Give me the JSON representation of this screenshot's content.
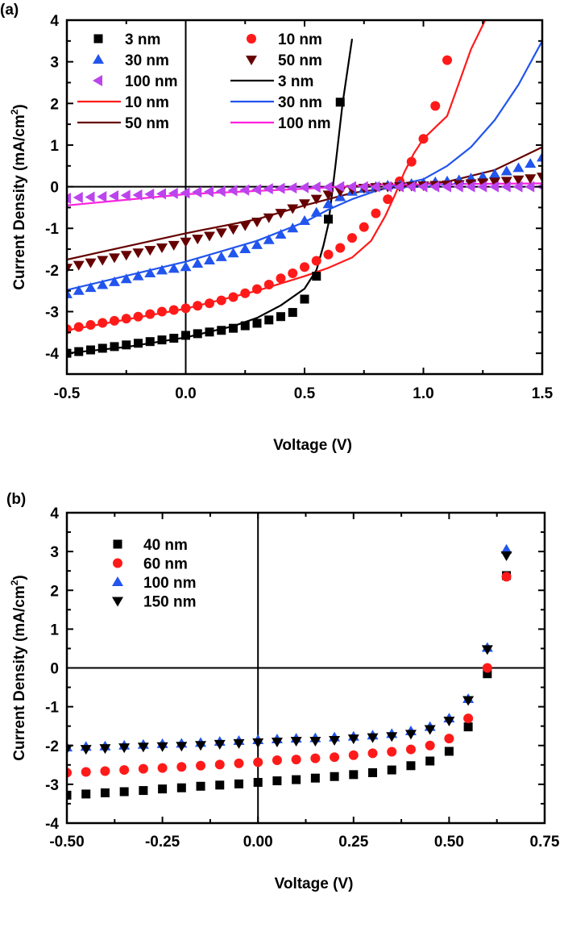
{
  "chart_data": [
    {
      "type": "scatter",
      "panel_label": "(a)",
      "xlabel": "Voltage (V)",
      "ylabel": "Current Density (mA/cm",
      "ylabel_sup": "2",
      "ylabel_close": ")",
      "xlim": [
        -0.5,
        1.5
      ],
      "ylim": [
        -4.5,
        4
      ],
      "xticks": [
        -0.5,
        0.0,
        0.5,
        1.0,
        1.5
      ],
      "xtick_labels": [
        "-0.5",
        "0.0",
        "0.5",
        "1.0",
        "1.5"
      ],
      "yticks": [
        -4,
        -3,
        -2,
        -1,
        0,
        1,
        2,
        3,
        4
      ],
      "ytick_labels": [
        "-4",
        "-3",
        "-2",
        "-1",
        "0",
        "1",
        "2",
        "3",
        "4"
      ],
      "grid": false,
      "reference_lines": {
        "x": 0,
        "y": 0
      },
      "legend_placement": "top-left",
      "x_markers": {
        "start": -0.5,
        "step": 0.05
      },
      "series": [
        {
          "name": "3 nm",
          "kind": "marker",
          "marker": "square",
          "color": "#000000",
          "values": [
            -4.0,
            -3.96,
            -3.92,
            -3.88,
            -3.84,
            -3.8,
            -3.76,
            -3.72,
            -3.68,
            -3.64,
            -3.57,
            -3.53,
            -3.49,
            -3.45,
            -3.4,
            -3.34,
            -3.28,
            -3.2,
            -3.12,
            -3.02,
            -2.7,
            -2.15,
            -0.78,
            2.03
          ]
        },
        {
          "name": "10 nm",
          "kind": "marker",
          "marker": "circle",
          "color": "#ff1a1a",
          "values": [
            -3.42,
            -3.37,
            -3.32,
            -3.27,
            -3.22,
            -3.17,
            -3.12,
            -3.06,
            -3.0,
            -2.96,
            -2.92,
            -2.86,
            -2.8,
            -2.73,
            -2.65,
            -2.56,
            -2.46,
            -2.35,
            -2.2,
            -2.08,
            -1.93,
            -1.78,
            -1.63,
            -1.47,
            -1.23,
            -0.97,
            -0.64,
            -0.3,
            0.13,
            0.6,
            1.15,
            1.94,
            3.04
          ]
        },
        {
          "name": "30 nm",
          "kind": "marker",
          "marker": "triangle-up",
          "color": "#2255ee",
          "values": [
            -2.58,
            -2.5,
            -2.43,
            -2.36,
            -2.29,
            -2.22,
            -2.15,
            -2.08,
            -2.01,
            -1.97,
            -1.93,
            -1.85,
            -1.77,
            -1.69,
            -1.6,
            -1.5,
            -1.4,
            -1.28,
            -1.15,
            -1.0,
            -0.82,
            -0.62,
            -0.42,
            -0.25,
            -0.12,
            -0.05,
            0.0,
            0.03,
            0.05,
            0.07,
            0.09,
            0.11,
            0.13,
            0.16,
            0.2,
            0.24,
            0.3,
            0.37,
            0.45,
            0.55,
            0.7
          ]
        },
        {
          "name": "50 nm",
          "kind": "marker",
          "marker": "triangle-down",
          "color": "#660000",
          "values": [
            -1.95,
            -1.88,
            -1.82,
            -1.76,
            -1.7,
            -1.64,
            -1.58,
            -1.52,
            -1.46,
            -1.4,
            -1.32,
            -1.25,
            -1.18,
            -1.1,
            -1.02,
            -0.93,
            -0.84,
            -0.74,
            -0.63,
            -0.52,
            -0.4,
            -0.29,
            -0.19,
            -0.11,
            -0.06,
            -0.03,
            -0.01,
            0.0,
            0.01,
            0.02,
            0.03,
            0.04,
            0.05,
            0.06,
            0.08,
            0.1,
            0.12,
            0.14,
            0.17,
            0.2,
            0.24
          ]
        },
        {
          "name": "100 nm",
          "kind": "marker",
          "marker": "triangle-left",
          "color": "#bb44ee",
          "values": [
            -0.28,
            -0.26,
            -0.25,
            -0.24,
            -0.22,
            -0.21,
            -0.2,
            -0.18,
            -0.17,
            -0.16,
            -0.15,
            -0.13,
            -0.12,
            -0.11,
            -0.09,
            -0.08,
            -0.07,
            -0.05,
            -0.04,
            -0.03,
            -0.02,
            -0.01,
            -0.01,
            0,
            0,
            0,
            0,
            0,
            0,
            0,
            0,
            0,
            0,
            0,
            0,
            0,
            0,
            0,
            0,
            0,
            0
          ]
        },
        {
          "name": "3 nm",
          "kind": "line",
          "color": "#000000",
          "points": [
            [
              -0.5,
              -4.0
            ],
            [
              -0.25,
              -3.85
            ],
            [
              0,
              -3.62
            ],
            [
              0.2,
              -3.35
            ],
            [
              0.3,
              -3.15
            ],
            [
              0.4,
              -2.85
            ],
            [
              0.5,
              -2.45
            ],
            [
              0.55,
              -2.0
            ],
            [
              0.58,
              -1.4
            ],
            [
              0.6,
              -0.9
            ],
            [
              0.63,
              0.5
            ],
            [
              0.66,
              2.0
            ],
            [
              0.7,
              3.55
            ]
          ]
        },
        {
          "name": "10 nm",
          "kind": "line",
          "color": "#ff1a1a",
          "points": [
            [
              -0.5,
              -3.45
            ],
            [
              0,
              -2.93
            ],
            [
              0.3,
              -2.5
            ],
            [
              0.5,
              -2.15
            ],
            [
              0.6,
              -1.95
            ],
            [
              0.7,
              -1.7
            ],
            [
              0.78,
              -1.3
            ],
            [
              0.84,
              -0.7
            ],
            [
              0.88,
              -0.2
            ],
            [
              0.92,
              0.35
            ],
            [
              0.96,
              0.8
            ],
            [
              1.0,
              1.15
            ],
            [
              1.1,
              1.7
            ],
            [
              1.15,
              2.5
            ],
            [
              1.2,
              3.3
            ],
            [
              1.26,
              4.0
            ]
          ]
        },
        {
          "name": "30 nm",
          "kind": "line",
          "color": "#2255ee",
          "points": [
            [
              -0.5,
              -2.48
            ],
            [
              0,
              -1.8
            ],
            [
              0.3,
              -1.3
            ],
            [
              0.5,
              -0.85
            ],
            [
              0.6,
              -0.55
            ],
            [
              0.7,
              -0.3
            ],
            [
              0.8,
              -0.1
            ],
            [
              0.9,
              0.05
            ],
            [
              1.0,
              0.18
            ],
            [
              1.1,
              0.5
            ],
            [
              1.2,
              0.95
            ],
            [
              1.3,
              1.6
            ],
            [
              1.4,
              2.45
            ],
            [
              1.5,
              3.5
            ]
          ]
        },
        {
          "name": "50 nm",
          "kind": "line",
          "color": "#660000",
          "points": [
            [
              -0.5,
              -1.75
            ],
            [
              0,
              -1.12
            ],
            [
              0.3,
              -0.78
            ],
            [
              0.5,
              -0.45
            ],
            [
              0.7,
              -0.15
            ],
            [
              0.9,
              0.0
            ],
            [
              1.1,
              0.12
            ],
            [
              1.3,
              0.4
            ],
            [
              1.5,
              0.95
            ]
          ]
        },
        {
          "name": "100 nm",
          "kind": "line",
          "color": "#ff22dd",
          "points": [
            [
              -0.5,
              -0.45
            ],
            [
              0,
              -0.18
            ],
            [
              0.5,
              -0.05
            ],
            [
              0.8,
              0.05
            ],
            [
              1.5,
              0.08
            ]
          ]
        }
      ]
    },
    {
      "type": "scatter",
      "panel_label": "(b)",
      "xlabel": "Voltage (V)",
      "ylabel": "Current Density (mA/cm",
      "ylabel_sup": "2",
      "ylabel_close": ")",
      "xlim": [
        -0.5,
        0.75
      ],
      "ylim": [
        -4,
        4
      ],
      "xticks": [
        -0.5,
        -0.25,
        0.0,
        0.25,
        0.5,
        0.75
      ],
      "xtick_labels": [
        "-0.50",
        "-0.25",
        "0.00",
        "0.25",
        "0.50",
        "0.75"
      ],
      "yticks": [
        -4,
        -3,
        -2,
        -1,
        0,
        1,
        2,
        3,
        4
      ],
      "ytick_labels": [
        "-4",
        "-3",
        "-2",
        "-1",
        "0",
        "1",
        "2",
        "3",
        "4"
      ],
      "grid": false,
      "reference_lines": {
        "x": 0,
        "y": 0
      },
      "legend_placement": "top-left",
      "x_markers": {
        "start": -0.5,
        "step": 0.05
      },
      "series": [
        {
          "name": "40 nm",
          "kind": "marker",
          "marker": "square",
          "color": "#000000",
          "values": [
            -3.28,
            -3.25,
            -3.22,
            -3.19,
            -3.16,
            -3.12,
            -3.09,
            -3.05,
            -3.02,
            -2.99,
            -2.95,
            -2.91,
            -2.88,
            -2.84,
            -2.8,
            -2.75,
            -2.7,
            -2.63,
            -2.52,
            -2.4,
            -2.15,
            -1.52,
            -0.15,
            2.38
          ]
        },
        {
          "name": "60 nm",
          "kind": "marker",
          "marker": "circle",
          "color": "#ff1a1a",
          "values": [
            -2.7,
            -2.68,
            -2.66,
            -2.63,
            -2.6,
            -2.58,
            -2.55,
            -2.52,
            -2.49,
            -2.46,
            -2.43,
            -2.38,
            -2.36,
            -2.33,
            -2.3,
            -2.25,
            -2.2,
            -2.16,
            -2.1,
            -2.0,
            -1.82,
            -1.3,
            0.0,
            2.35
          ]
        },
        {
          "name": "100 nm",
          "kind": "marker",
          "marker": "triangle-up",
          "color": "#2255ee",
          "values": [
            -2.05,
            -2.03,
            -2.02,
            -2.0,
            -1.98,
            -1.96,
            -1.95,
            -1.93,
            -1.9,
            -1.88,
            -1.86,
            -1.84,
            -1.82,
            -1.81,
            -1.79,
            -1.77,
            -1.74,
            -1.7,
            -1.63,
            -1.52,
            -1.3,
            -0.8,
            0.52,
            3.05
          ]
        },
        {
          "name": "150 nm",
          "kind": "marker",
          "marker": "triangle-down",
          "color": "#000000",
          "values": [
            -2.08,
            -2.09,
            -2.07,
            -2.05,
            -2.03,
            -2.02,
            -2.01,
            -1.99,
            -1.96,
            -1.94,
            -1.92,
            -1.9,
            -1.88,
            -1.88,
            -1.86,
            -1.82,
            -1.79,
            -1.76,
            -1.7,
            -1.58,
            -1.36,
            -0.83,
            0.48,
            2.9
          ]
        }
      ]
    }
  ]
}
